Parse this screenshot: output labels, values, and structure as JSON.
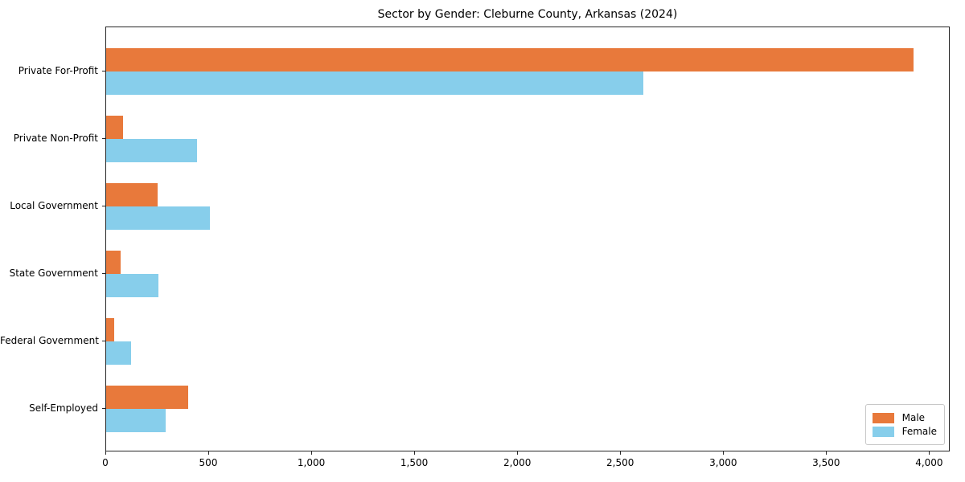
{
  "title": "Sector by Gender: Cleburne County, Arkansas (2024)",
  "chart_data": {
    "type": "bar",
    "orientation": "horizontal",
    "title": "Sector by Gender: Cleburne County, Arkansas (2024)",
    "categories": [
      "Private For-Profit",
      "Private Non-Profit",
      "Local Government",
      "State Government",
      "Federal Government",
      "Self-Employed"
    ],
    "series": [
      {
        "name": "Male",
        "color": "#E8793B",
        "values": [
          3920,
          80,
          250,
          70,
          40,
          400
        ]
      },
      {
        "name": "Female",
        "color": "#87CEEB",
        "values": [
          2610,
          440,
          505,
          255,
          120,
          290
        ]
      }
    ],
    "xlabel": "",
    "ylabel": "",
    "xlim": [
      0,
      4100
    ],
    "xticks": {
      "values": [
        0,
        500,
        1000,
        1500,
        2000,
        2500,
        3000,
        3500,
        4000
      ],
      "labels": [
        "0",
        "500",
        "1,000",
        "1,500",
        "2,000",
        "2,500",
        "3,000",
        "3,500",
        "4,000"
      ]
    },
    "grid": false,
    "legend": {
      "position": "lower right",
      "entries": [
        "Male",
        "Female"
      ]
    },
    "colors": {
      "male": "#E8793B",
      "female": "#87CEEB",
      "axis": "#262626",
      "background": "#ffffff"
    }
  }
}
